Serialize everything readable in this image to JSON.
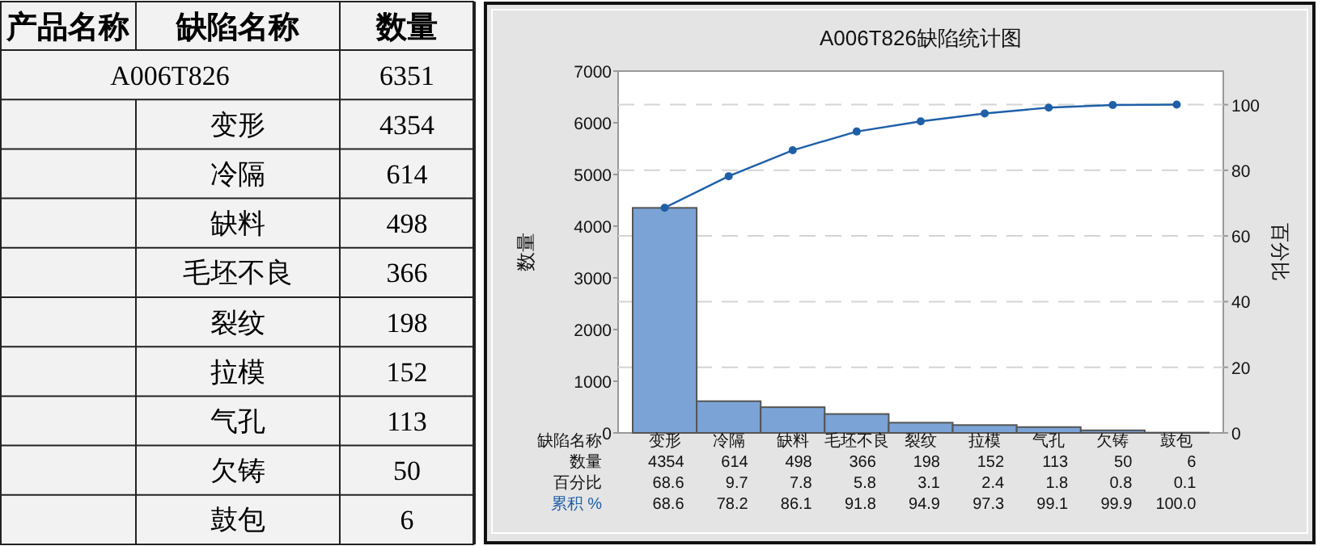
{
  "chart_data": [
    {
      "type": "other",
      "categories": [
        "变形",
        "冷隔",
        "缺料",
        "毛坯不良",
        "裂纹",
        "拉模",
        "气孔",
        "欠铸",
        "鼓包"
      ],
      "values": [
        4354,
        614,
        498,
        366,
        198,
        152,
        113,
        50,
        6
      ],
      "data_labels": true,
      "annotations": [
        "产品名称",
        "缺陷名称",
        "数量",
        "A006T826",
        "6351"
      ]
    },
    {
      "type": "bar",
      "title": "A006T826缺陷统计图",
      "xlabel": "缺陷名称",
      "ylabel": "数量",
      "y2label": "百分比",
      "categories": [
        "变形",
        "冷隔",
        "缺料",
        "毛坯不良",
        "裂纹",
        "拉模",
        "气孔",
        "欠铸",
        "鼓包"
      ],
      "series": [
        {
          "name": "数量",
          "type": "bar",
          "color": "#7ba3d6",
          "values": [
            4354,
            614,
            498,
            366,
            198,
            152,
            113,
            50,
            6
          ]
        },
        {
          "name": "累积 %",
          "type": "line",
          "axis": "y2",
          "color": "#1f5fa8",
          "marker": "circle",
          "values": [
            68.6,
            78.2,
            86.1,
            91.8,
            94.9,
            97.3,
            99.1,
            99.9,
            100.0
          ],
          "value_labels": [
            "68.6",
            "78.2",
            "86.1",
            "91.8",
            "94.9",
            "97.3",
            "99.1",
            "99.9",
            "100.0"
          ]
        }
      ],
      "ylim": [
        0,
        7000
      ],
      "yticks": [
        0,
        1000,
        2000,
        3000,
        4000,
        5000,
        6000,
        7000
      ],
      "y2lim": [
        0,
        110.22
      ],
      "y2ticks": [
        0,
        20,
        40,
        60,
        80,
        100
      ],
      "grid": true,
      "data_labels": true,
      "annotations": [
        "百分比",
        "68.6",
        "9.7",
        "7.8",
        "5.8",
        "3.1",
        "2.4",
        "1.8",
        "0.8",
        "0.1"
      ]
    }
  ]
}
